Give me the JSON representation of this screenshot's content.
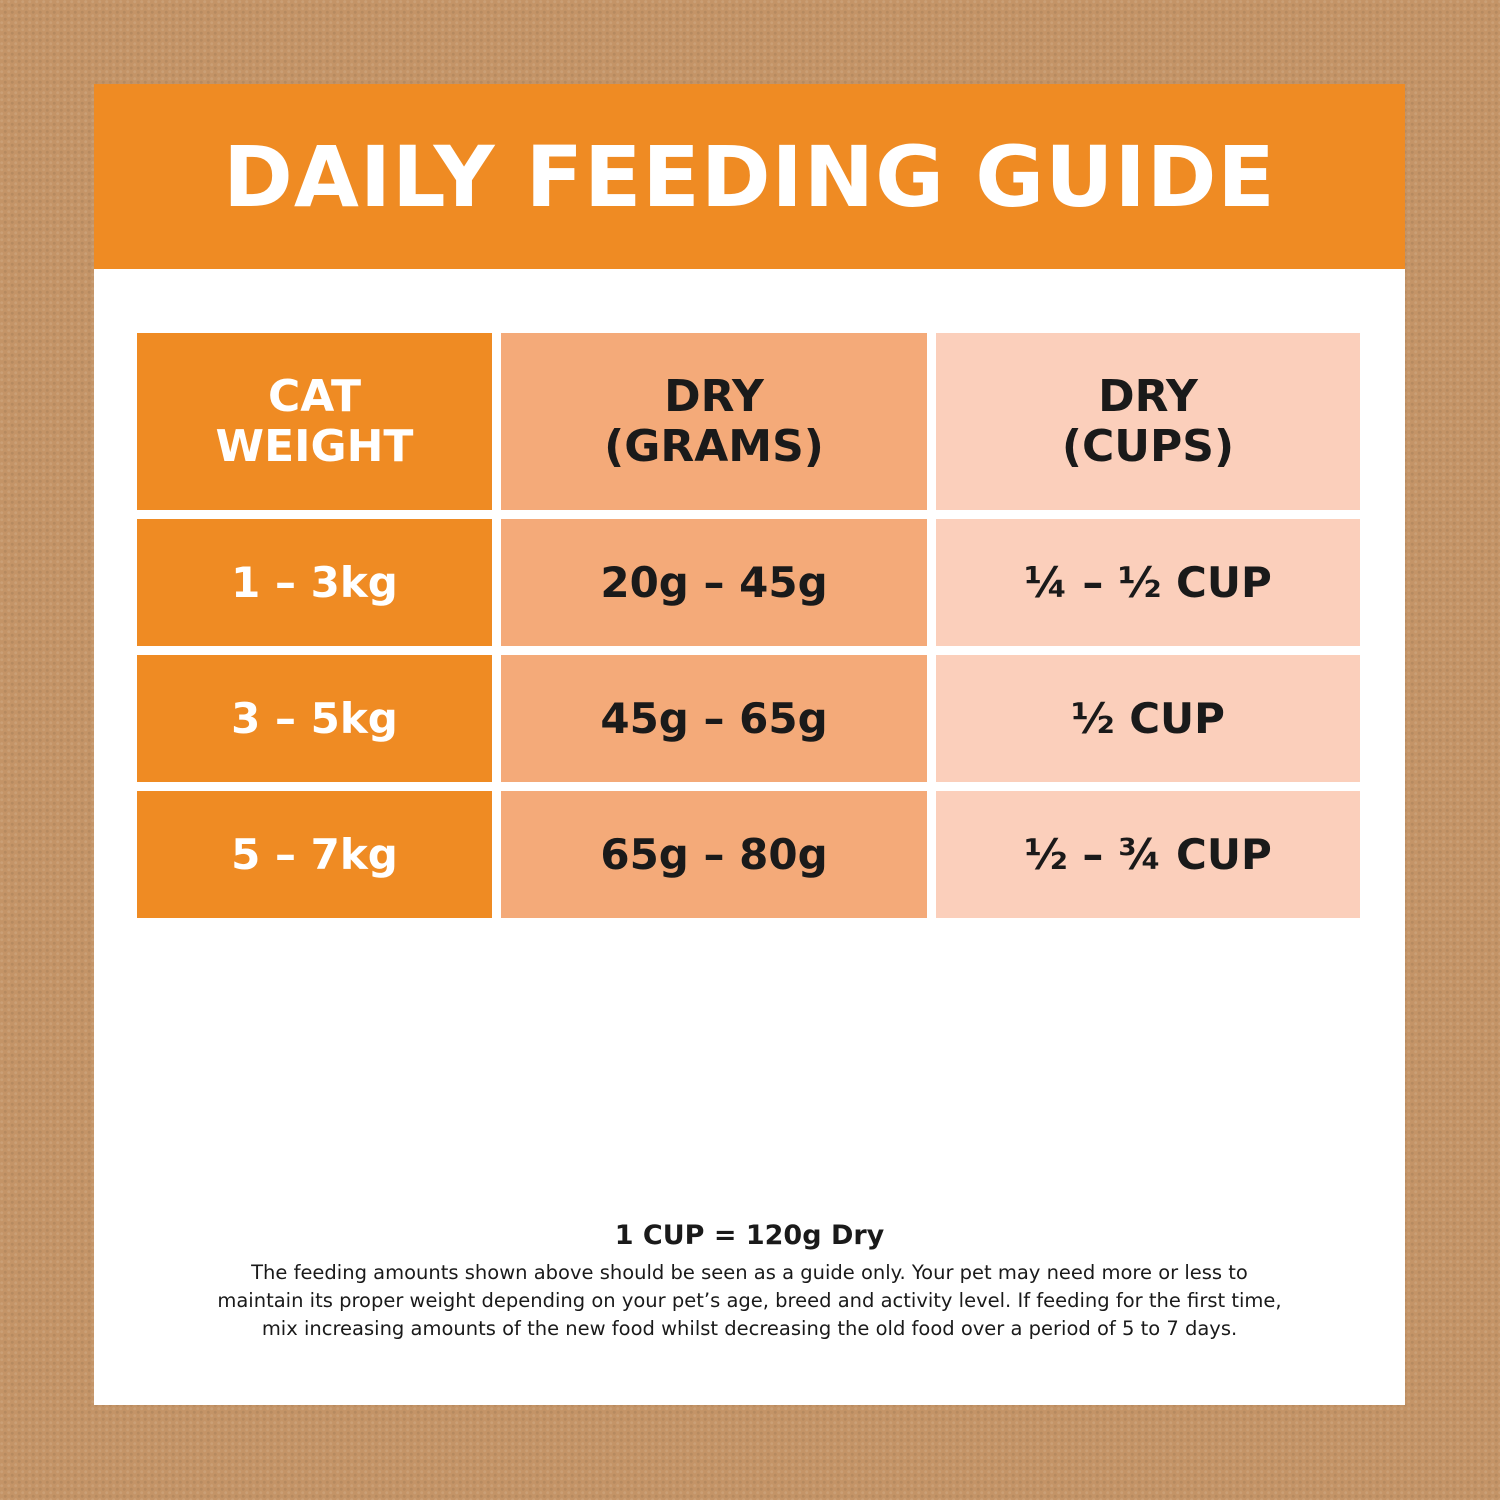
{
  "banner": {
    "title": "DAILY FEEDING GUIDE"
  },
  "table": {
    "headers": [
      {
        "line1": "CAT",
        "line2": "WEIGHT"
      },
      {
        "line1": "DRY",
        "line2": "(GRAMS)"
      },
      {
        "line1": "DRY",
        "line2": "(CUPS)"
      }
    ],
    "rows": [
      [
        "1 – 3kg",
        "20g – 45g",
        "¼ – ½ CUP"
      ],
      [
        "3 – 5kg",
        "45g – 65g",
        "½ CUP"
      ],
      [
        "5 – 7kg",
        "65g – 80g",
        "½ – ¾ CUP"
      ]
    ]
  },
  "footer": {
    "conversion": "1 CUP = 120g Dry",
    "disclaimer_lines": [
      "The feeding amounts shown above should be seen as a guide only. Your pet may need more or less to",
      "maintain its proper weight depending on your pet’s age, breed and activity level. If feeding for the first time,",
      "mix increasing amounts of the new food whilst decreasing the old food over a period of 5 to 7 days."
    ]
  },
  "colors": {
    "background": "#c49467",
    "orange": "#ef8b23",
    "mid_peach": "#f4aa79",
    "light_peach": "#fbcfbb"
  }
}
